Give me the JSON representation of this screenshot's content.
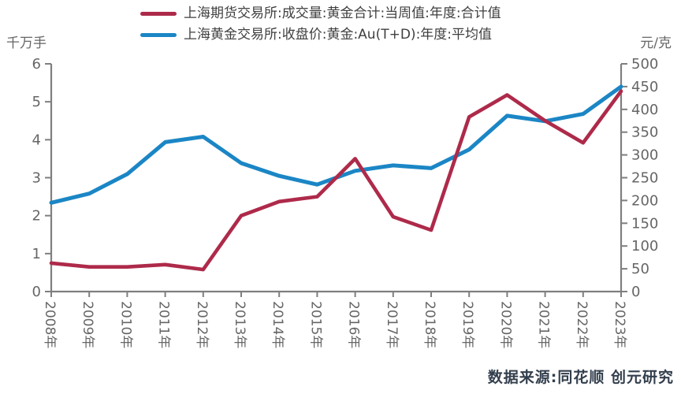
{
  "legend": {
    "items": [
      {
        "label": "上海期货交易所:成交量:黄金合计:当周值:年度:合计值",
        "color": "#ae2a4a"
      },
      {
        "label": "上海黄金交易所:收盘价:黄金:Au(T+D):年度:平均值",
        "color": "#1b86c5"
      }
    ]
  },
  "axes": {
    "left_unit": "千万手",
    "right_unit": "元/克"
  },
  "footer": {
    "text": "数据来源:同花顺 创元研究"
  },
  "colors": {
    "red_series": "#ae2a4a",
    "blue_series": "#1b86c5",
    "axis_line": "#7f7f7f",
    "tick_label": "#666666",
    "legend_text": "#3f3f3f",
    "footer_text": "#333f4d",
    "background": "#ffffff"
  },
  "chart_data": {
    "type": "line",
    "title": "",
    "categories": [
      "2008年",
      "2009年",
      "2010年",
      "2011年",
      "2012年",
      "2013年",
      "2014年",
      "2015年",
      "2016年",
      "2017年",
      "2018年",
      "2019年",
      "2020年",
      "2021年",
      "2022年",
      "2023年"
    ],
    "series": [
      {
        "name": "上海期货交易所:成交量:黄金合计:当周值:年度:合计值",
        "axis": "left",
        "color": "#ae2a4a",
        "values": [
          0.75,
          0.65,
          0.65,
          0.71,
          0.58,
          2.0,
          2.37,
          2.5,
          3.5,
          1.97,
          1.62,
          4.6,
          5.18,
          4.5,
          3.92,
          5.28
        ]
      },
      {
        "name": "上海黄金交易所:收盘价:黄金:Au(T+D):年度:平均值",
        "axis": "right",
        "color": "#1b86c5",
        "values": [
          195,
          215,
          258,
          328,
          340,
          282,
          254,
          235,
          265,
          277,
          271,
          312,
          386,
          374,
          390,
          450
        ]
      }
    ],
    "left_axis": {
      "unit": "千万手",
      "min": 0,
      "max": 6,
      "step": 1
    },
    "right_axis": {
      "unit": "元/克",
      "min": 0,
      "max": 500,
      "step": 50
    },
    "grid": false,
    "legend_position": "top",
    "source_note": "数据来源:同花顺 创元研究"
  }
}
